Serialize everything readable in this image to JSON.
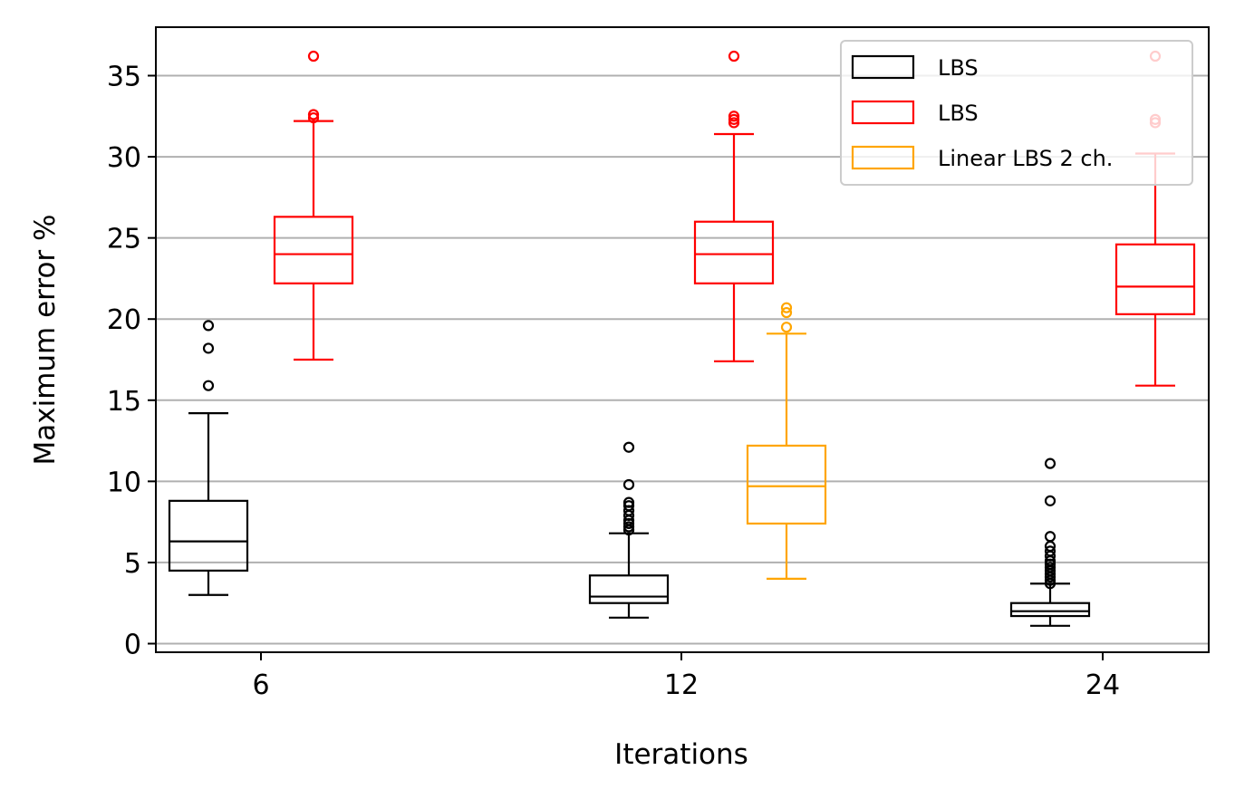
{
  "chart_data": {
    "type": "box",
    "xlabel": "Iterations",
    "ylabel": "Maximum error %",
    "categories": [
      "6",
      "12",
      "24"
    ],
    "ylim": [
      -0.6,
      38
    ],
    "yticks": [
      0,
      5,
      10,
      15,
      20,
      25,
      30,
      35
    ],
    "grid": "horizontal",
    "legend_position": "top-right",
    "series": [
      {
        "name": "LBS",
        "color": "#000000",
        "boxes": [
          {
            "category": "6",
            "whislo": 3.0,
            "q1": 4.5,
            "median": 6.3,
            "q3": 8.8,
            "whishi": 14.2,
            "fliers": [
              15.9,
              18.2,
              19.6
            ]
          },
          {
            "category": "12",
            "whislo": 1.6,
            "q1": 2.5,
            "median": 2.9,
            "q3": 4.2,
            "whishi": 6.8,
            "fliers": [
              7.0,
              7.2,
              7.4,
              7.6,
              7.9,
              8.2,
              8.5,
              8.7,
              9.8,
              12.1
            ]
          },
          {
            "category": "24",
            "whislo": 1.1,
            "q1": 1.7,
            "median": 2.0,
            "q3": 2.5,
            "whishi": 3.7,
            "fliers": [
              3.7,
              3.9,
              4.1,
              4.3,
              4.5,
              4.7,
              4.9,
              5.1,
              5.4,
              5.7,
              6.0,
              6.6,
              8.8,
              11.1
            ]
          }
        ]
      },
      {
        "name": "LBS",
        "color": "#ff0000",
        "boxes": [
          {
            "category": "6",
            "whislo": 17.5,
            "q1": 22.2,
            "median": 24.0,
            "q3": 26.3,
            "whishi": 32.2,
            "fliers": [
              32.4,
              32.6,
              36.2
            ]
          },
          {
            "category": "12",
            "whislo": 17.4,
            "q1": 22.2,
            "median": 24.0,
            "q3": 26.0,
            "whishi": 31.4,
            "fliers": [
              32.1,
              32.3,
              32.5,
              36.2
            ]
          },
          {
            "category": "24",
            "whislo": 15.9,
            "q1": 20.3,
            "median": 22.0,
            "q3": 24.6,
            "whishi": 30.2,
            "fliers": [
              32.1,
              32.3,
              36.2
            ]
          }
        ]
      },
      {
        "name": "Linear LBS 2 ch.",
        "color": "#ffa500",
        "boxes": [
          {
            "category": "12",
            "whislo": 4.0,
            "q1": 7.4,
            "median": 9.7,
            "q3": 12.2,
            "whishi": 19.1,
            "fliers": [
              19.5,
              20.4,
              20.7
            ]
          }
        ]
      }
    ]
  }
}
